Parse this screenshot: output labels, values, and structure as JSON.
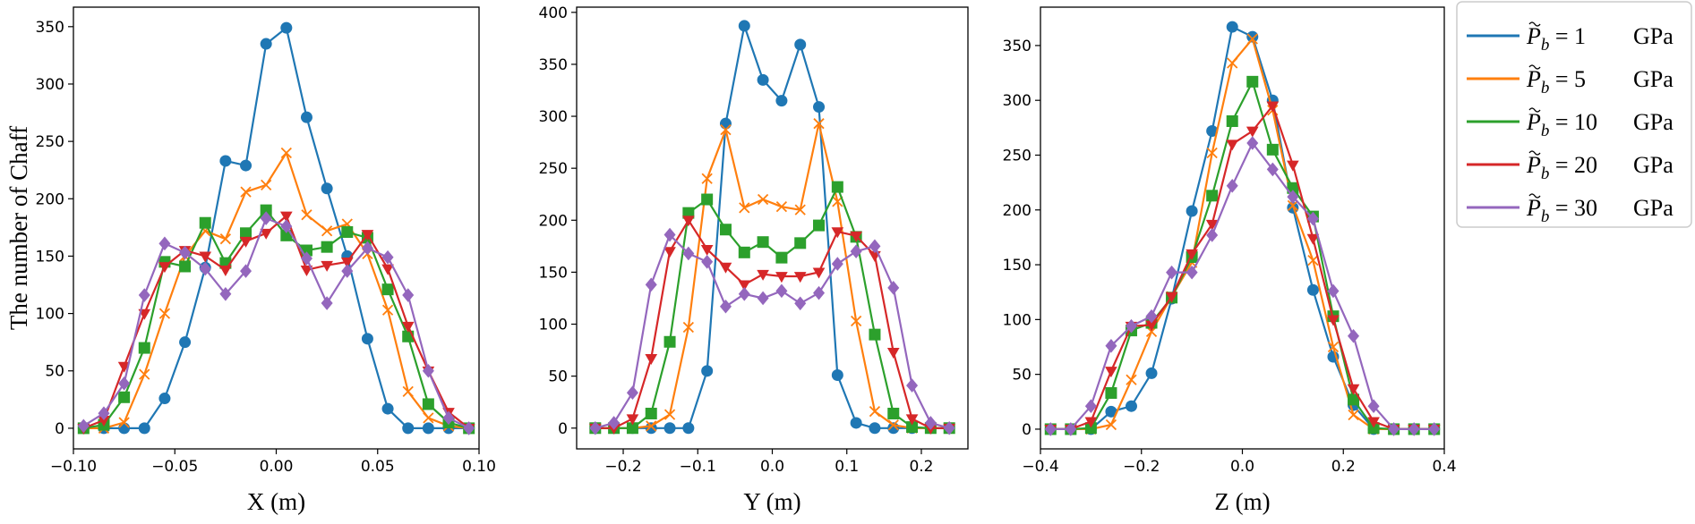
{
  "chart_data": [
    {
      "type": "line",
      "xlabel": "X (m)",
      "ylabel": "The number of Chaff",
      "xlim": [
        -0.1,
        0.1
      ],
      "ylim": [
        -18,
        367
      ],
      "xticks": [
        -0.1,
        -0.05,
        0,
        0.05,
        0.1
      ],
      "xtick_labels": [
        "−0.10",
        "−0.05",
        "0.00",
        "0.05",
        "0.10"
      ],
      "yticks": [
        0,
        50,
        100,
        150,
        200,
        250,
        300,
        350
      ],
      "ytick_labels": [
        "0",
        "50",
        "100",
        "150",
        "200",
        "250",
        "300",
        "350"
      ],
      "x": [
        -0.095,
        -0.085,
        -0.075,
        -0.065,
        -0.055,
        -0.045,
        -0.035,
        -0.025,
        -0.015,
        -0.005,
        0.005,
        0.015,
        0.025,
        0.035,
        0.045,
        0.055,
        0.065,
        0.075,
        0.085,
        0.095
      ],
      "series": [
        {
          "name": "P_b = 1 GPa",
          "values": [
            0,
            0,
            0,
            0,
            26,
            75,
            140,
            233,
            229,
            335,
            349,
            271,
            209,
            150,
            78,
            17,
            0,
            0,
            0,
            0
          ]
        },
        {
          "name": "P_b = 5 GPa",
          "values": [
            0,
            0,
            5,
            47,
            100,
            150,
            172,
            165,
            206,
            212,
            240,
            186,
            172,
            178,
            152,
            103,
            32,
            9,
            2,
            0
          ]
        },
        {
          "name": "P_b = 10 GPa",
          "values": [
            0,
            3,
            27,
            70,
            145,
            141,
            179,
            144,
            170,
            190,
            168,
            155,
            158,
            171,
            166,
            121,
            80,
            21,
            5,
            0
          ]
        },
        {
          "name": "P_b = 20 GPa",
          "values": [
            0,
            7,
            54,
            100,
            141,
            155,
            150,
            138,
            163,
            170,
            185,
            138,
            142,
            145,
            169,
            139,
            89,
            50,
            14,
            0
          ]
        },
        {
          "name": "P_b = 30 GPa",
          "values": [
            2,
            13,
            39,
            116,
            161,
            153,
            139,
            117,
            137,
            183,
            176,
            148,
            109,
            137,
            157,
            149,
            116,
            50,
            9,
            0
          ]
        }
      ]
    },
    {
      "type": "line",
      "xlabel": "Y (m)",
      "ylabel": "",
      "xlim": [
        -0.2625,
        0.2625
      ],
      "ylim": [
        -20,
        405
      ],
      "xticks": [
        -0.2,
        -0.1,
        0,
        0.1,
        0.2
      ],
      "xtick_labels": [
        "−0.2",
        "−0.1",
        "0.0",
        "0.1",
        "0.2"
      ],
      "yticks": [
        0,
        50,
        100,
        150,
        200,
        250,
        300,
        350,
        400
      ],
      "ytick_labels": [
        "0",
        "50",
        "100",
        "150",
        "200",
        "250",
        "300",
        "350",
        "400"
      ],
      "x": [
        -0.2375,
        -0.2125,
        -0.1875,
        -0.1625,
        -0.1375,
        -0.1125,
        -0.0875,
        -0.0625,
        -0.0375,
        -0.0125,
        0.0125,
        0.0375,
        0.0625,
        0.0875,
        0.1125,
        0.1375,
        0.1625,
        0.1875,
        0.2125,
        0.2375
      ],
      "series": [
        {
          "name": "P_b = 1 GPa",
          "values": [
            0,
            0,
            0,
            0,
            0,
            0,
            55,
            293,
            387,
            335,
            315,
            369,
            309,
            51,
            5,
            0,
            0,
            0,
            0,
            0
          ]
        },
        {
          "name": "P_b = 5 GPa",
          "values": [
            0,
            0,
            0,
            2,
            13,
            97,
            240,
            287,
            212,
            220,
            213,
            210,
            293,
            218,
            103,
            16,
            3,
            0,
            0,
            0
          ]
        },
        {
          "name": "P_b = 10 GPa",
          "values": [
            0,
            0,
            0,
            14,
            83,
            207,
            220,
            191,
            169,
            179,
            164,
            178,
            195,
            232,
            184,
            90,
            14,
            1,
            0,
            0
          ]
        },
        {
          "name": "P_b = 20 GPa",
          "values": [
            0,
            0,
            9,
            67,
            170,
            200,
            172,
            155,
            138,
            148,
            146,
            146,
            150,
            189,
            185,
            166,
            73,
            9,
            0,
            0
          ]
        },
        {
          "name": "P_b = 30 GPa",
          "values": [
            0,
            5,
            34,
            138,
            186,
            168,
            160,
            117,
            129,
            125,
            132,
            120,
            130,
            158,
            170,
            175,
            135,
            41,
            5,
            0
          ]
        }
      ]
    },
    {
      "type": "line",
      "xlabel": "Z (m)",
      "ylabel": "",
      "xlim": [
        -0.4,
        0.4
      ],
      "ylim": [
        -18,
        385
      ],
      "xticks": [
        -0.4,
        -0.2,
        0,
        0.2,
        0.4
      ],
      "xtick_labels": [
        "−0.4",
        "−0.2",
        "0.0",
        "0.2",
        "0.4"
      ],
      "yticks": [
        0,
        50,
        100,
        150,
        200,
        250,
        300,
        350
      ],
      "ytick_labels": [
        "0",
        "50",
        "100",
        "150",
        "200",
        "250",
        "300",
        "350"
      ],
      "x": [
        -0.38,
        -0.34,
        -0.3,
        -0.26,
        -0.22,
        -0.18,
        -0.14,
        -0.1,
        -0.06,
        -0.02,
        0.02,
        0.06,
        0.1,
        0.14,
        0.18,
        0.22,
        0.26,
        0.3,
        0.34,
        0.38
      ],
      "series": [
        {
          "name": "P_b = 1 GPa",
          "values": [
            0,
            0,
            0,
            16,
            21,
            51,
            119,
            199,
            272,
            367,
            358,
            300,
            202,
            127,
            66,
            22,
            0,
            0,
            0,
            0
          ]
        },
        {
          "name": "P_b = 5 GPa",
          "values": [
            0,
            0,
            0,
            4,
            45,
            89,
            121,
            152,
            252,
            334,
            356,
            291,
            204,
            154,
            75,
            13,
            0,
            0,
            0,
            0
          ]
        },
        {
          "name": "P_b = 10 GPa",
          "values": [
            0,
            0,
            1,
            33,
            90,
            97,
            120,
            157,
            213,
            281,
            317,
            255,
            220,
            194,
            103,
            27,
            1,
            0,
            0,
            0
          ]
        },
        {
          "name": "P_b = 20 GPa",
          "values": [
            0,
            0,
            7,
            53,
            94,
            95,
            121,
            160,
            187,
            260,
            272,
            295,
            241,
            174,
            100,
            37,
            7,
            0,
            0,
            0
          ]
        },
        {
          "name": "P_b = 30 GPa",
          "values": [
            0,
            0,
            21,
            76,
            94,
            103,
            143,
            143,
            177,
            222,
            261,
            237,
            212,
            192,
            126,
            85,
            21,
            0,
            0,
            0
          ]
        }
      ]
    }
  ],
  "legend": {
    "entries": [
      {
        "symbol": "P",
        "subscript": "b",
        "value": "= 1",
        "unit": "GPa"
      },
      {
        "symbol": "P",
        "subscript": "b",
        "value": "= 5",
        "unit": "GPa"
      },
      {
        "symbol": "P",
        "subscript": "b",
        "value": "= 10",
        "unit": "GPa"
      },
      {
        "symbol": "P",
        "subscript": "b",
        "value": "= 20",
        "unit": "GPa"
      },
      {
        "symbol": "P",
        "subscript": "b",
        "value": "= 30",
        "unit": "GPa"
      }
    ]
  },
  "colors": [
    "#1f77b4",
    "#ff7f0e",
    "#2ca02c",
    "#d62728",
    "#9467bd"
  ],
  "markers": [
    "circle",
    "x",
    "square",
    "triangle-down",
    "diamond"
  ]
}
